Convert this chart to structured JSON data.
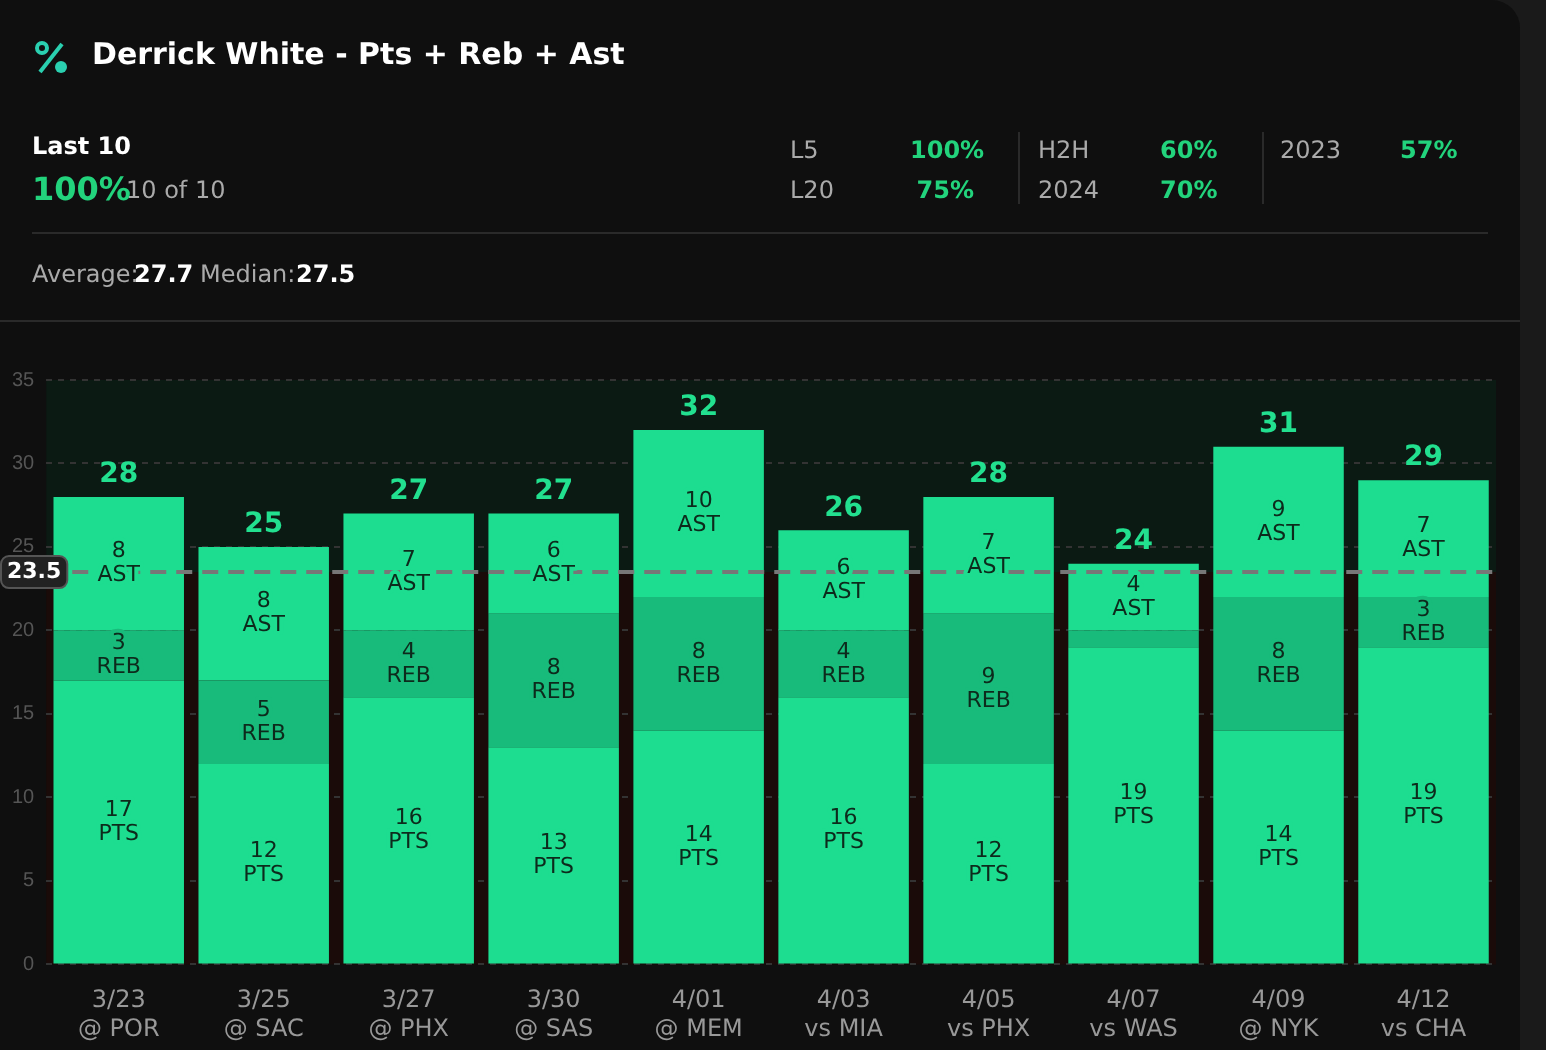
{
  "chart_data": {
    "type": "bar",
    "stacked": true,
    "title": "Derrick White - Pts + Reb + Ast",
    "annotations": [
      "Last 10",
      "100%",
      "10 of 10",
      "L5",
      "100%",
      "L20",
      "75%",
      "H2H",
      "60%",
      "2024",
      "70%",
      "2023",
      "57%",
      "Average:",
      "27.7",
      "Median:",
      "27.5"
    ],
    "categories": [
      "3/23\n@ POR",
      "3/25\n@ SAC",
      "3/27\n@ PHX",
      "3/30\n@ SAS",
      "4/01\n@ MEM",
      "4/03\nvs MIA",
      "4/05\nvs PHX",
      "4/07\nvs WAS",
      "4/09\n@ NYK",
      "4/12\nvs CHA"
    ],
    "series": [
      {
        "name": "PTS",
        "color": "#1ddd90",
        "values": [
          17,
          12,
          16,
          13,
          14,
          16,
          12,
          19,
          14,
          19
        ],
        "value_labels": [
          "17",
          "12",
          "16",
          "13",
          "14",
          "16",
          "12",
          "19",
          "14",
          "19"
        ]
      },
      {
        "name": "REB",
        "color": "#18bb7b",
        "values": [
          3,
          5,
          4,
          8,
          8,
          4,
          9,
          1,
          8,
          3
        ],
        "value_labels": [
          "3",
          "5",
          "4",
          "8",
          "8",
          "4",
          "9",
          null,
          "8",
          "3"
        ]
      },
      {
        "name": "AST",
        "color": "#1ddd90",
        "values": [
          8,
          8,
          7,
          6,
          10,
          6,
          7,
          4,
          9,
          7
        ],
        "value_labels": [
          "8",
          "8",
          "7",
          "6",
          "10",
          "6",
          "7",
          "4",
          "9",
          "7"
        ]
      }
    ],
    "totals": [
      "28",
      "25",
      "27",
      "27",
      "32",
      "26",
      "28",
      "24",
      "31",
      "29"
    ],
    "ylim": [
      0,
      35
    ],
    "yticks": [
      0,
      5,
      10,
      15,
      20,
      25,
      30,
      35
    ],
    "grid": "y",
    "legend": false,
    "ref_lines": [
      {
        "axis": "y",
        "value": 23.5,
        "label": "23.5",
        "color": "#777777",
        "line_style": "dashed"
      }
    ],
    "bands": [
      {
        "axis": "y",
        "from": 23.5,
        "to": 35,
        "color": "#0b1a13"
      },
      {
        "axis": "y",
        "from": 0,
        "to": 23.5,
        "color": "#1a0b09"
      }
    ]
  }
}
